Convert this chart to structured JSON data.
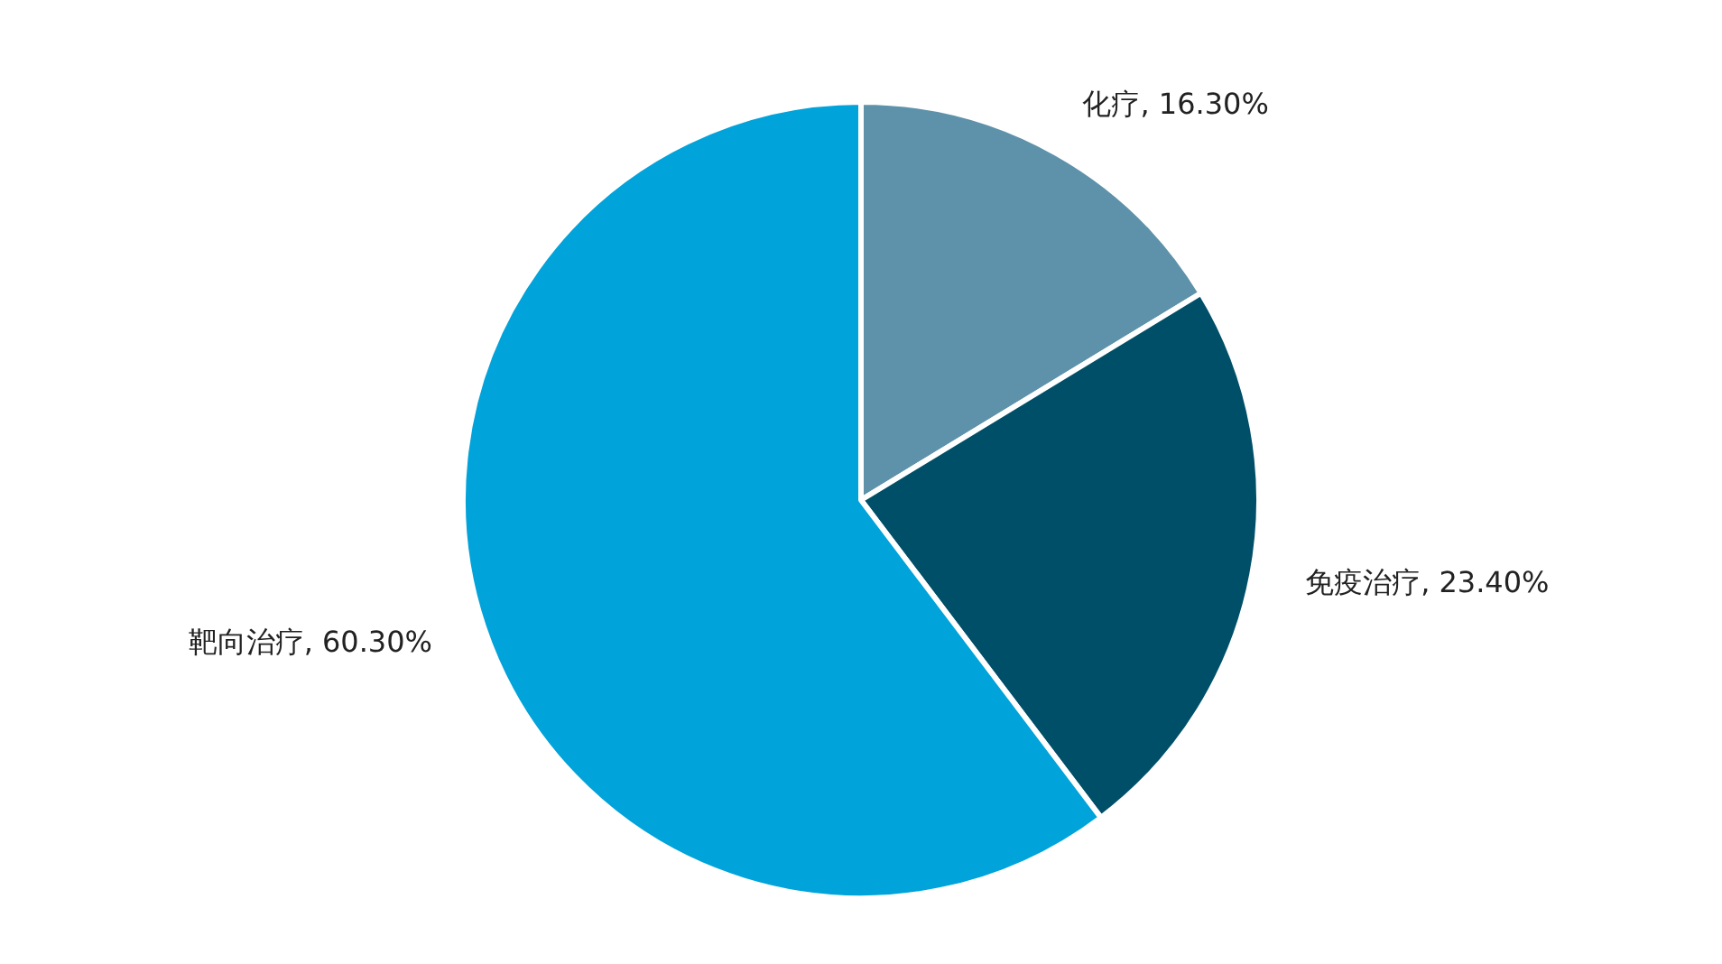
{
  "chart_data": {
    "type": "pie",
    "categories": [
      "化疗",
      "免疫治疗",
      "靶向治疗"
    ],
    "values": [
      16.3,
      23.4,
      60.3
    ],
    "colors": [
      "#5e92aa",
      "#004f68",
      "#00a3da"
    ],
    "value_labels": [
      "16.30%",
      "23.40%",
      "60.30%"
    ],
    "legend": false
  }
}
